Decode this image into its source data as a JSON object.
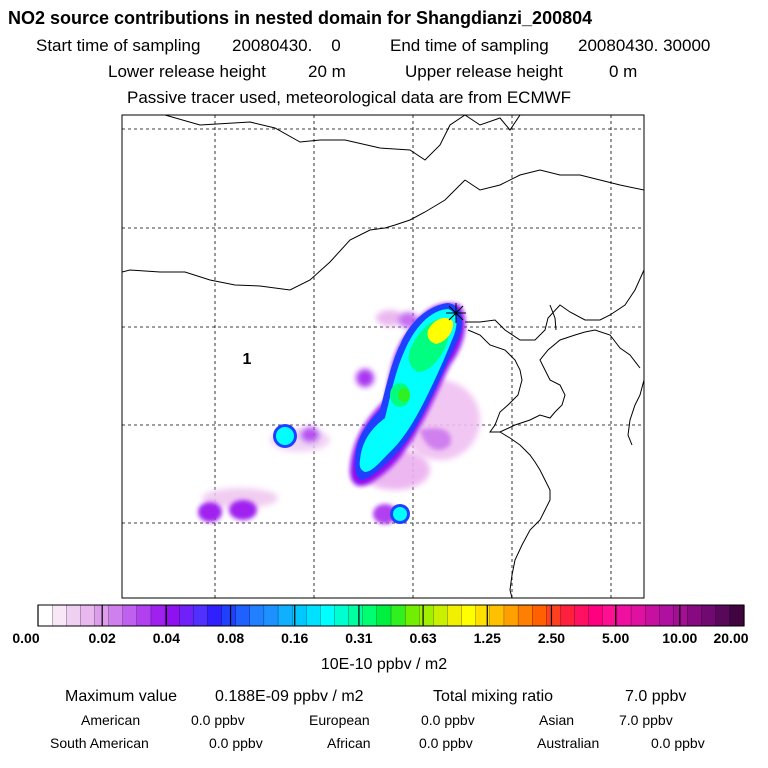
{
  "title": "NO2 source contributions in nested domain for Shangdianzi_200804",
  "header": {
    "start_label": "Start time of sampling",
    "start_value": "20080430.    0",
    "end_label": "End time of sampling",
    "end_value": "20080430. 30000",
    "lower_label": "Lower release height",
    "lower_value": "20 m",
    "upper_label": "Upper release height",
    "upper_value": "0 m",
    "note": "Passive tracer used, meteorological data are from ECMWF"
  },
  "map": {
    "region_label": "1",
    "receptor_marker": "star-receptor-icon",
    "plume_color_key": [
      "#f8c8f8",
      "#a020f0",
      "#3030ff",
      "#1e90ff",
      "#00ffff",
      "#00ff80",
      "#ffff00"
    ]
  },
  "chart_data": {
    "type": "heatmap",
    "title": "NO2 source contributions in nested domain for Shangdianzi_200804",
    "colorbar": {
      "tick_labels": [
        "0.00",
        "0.02",
        "0.04",
        "0.08",
        "0.16",
        "0.31",
        "0.63",
        "1.25",
        "2.50",
        "5.00",
        "10.00",
        "20.00"
      ],
      "colors": [
        "#ffffff",
        "#f7e7f7",
        "#f0d0f2",
        "#e8b8ee",
        "#dc9eea",
        "#d080ee",
        "#c060f0",
        "#b040f0",
        "#a020f0",
        "#9010f0",
        "#7020f8",
        "#5030ff",
        "#3020ff",
        "#2040ff",
        "#2060ff",
        "#2080ff",
        "#1e90ff",
        "#10b0ff",
        "#00c8ff",
        "#00e0ff",
        "#00ffff",
        "#00ffd0",
        "#00ffa0",
        "#00ff70",
        "#00f040",
        "#30f020",
        "#70f000",
        "#a0f000",
        "#c8f000",
        "#f0f000",
        "#ffff00",
        "#ffe000",
        "#ffc000",
        "#ffa000",
        "#ff8000",
        "#ff6000",
        "#ff4020",
        "#ff2040",
        "#ff1060",
        "#ff0080",
        "#ff1093",
        "#f010a0",
        "#e010a0",
        "#c810a0",
        "#b010a0",
        "#a01090",
        "#880a80",
        "#700a70",
        "#580858",
        "#400440"
      ],
      "unit_label": "10E-10 ppbv / m2"
    }
  },
  "footer": {
    "max_label": "Maximum value",
    "max_value": "0.188E-09 ppbv / m2",
    "total_label": "Total mixing ratio",
    "total_value": "7.0 ppbv",
    "regions": [
      {
        "name": "American",
        "value": "0.0 ppbv"
      },
      {
        "name": "European",
        "value": "0.0 ppbv"
      },
      {
        "name": "Asian",
        "value": "7.0 ppbv"
      },
      {
        "name": "South American",
        "value": "0.0 ppbv"
      },
      {
        "name": "African",
        "value": "0.0 ppbv"
      },
      {
        "name": "Australian",
        "value": "0.0 ppbv"
      }
    ]
  }
}
